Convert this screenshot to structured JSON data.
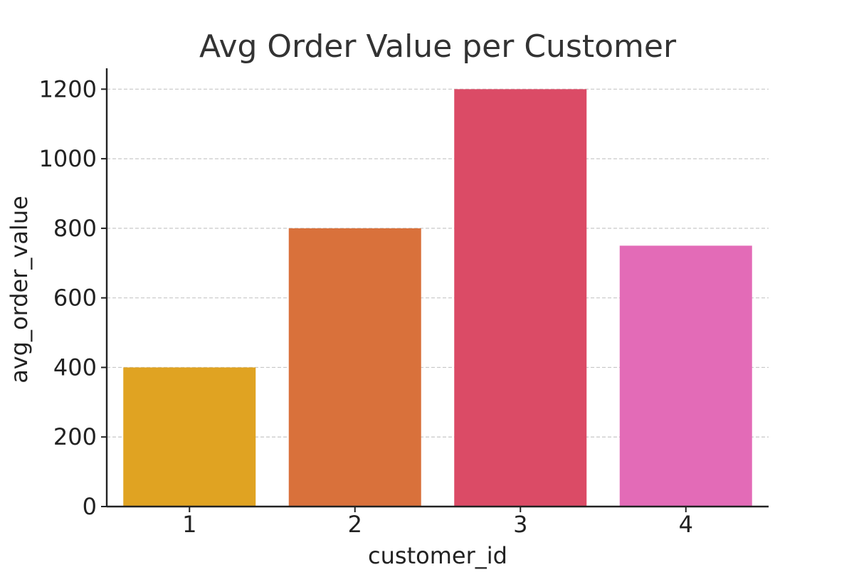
{
  "chart_data": {
    "type": "bar",
    "title": "Avg Order Value per Customer",
    "xlabel": "customer_id",
    "ylabel": "avg_order_value",
    "categories": [
      "1",
      "2",
      "3",
      "4"
    ],
    "values": [
      400,
      800,
      1200,
      750
    ],
    "ylim": [
      0,
      1260
    ],
    "yticks": [
      0,
      200,
      400,
      600,
      800,
      1000,
      1200
    ],
    "grid": "horizontal dashed",
    "colors": [
      "#e0a322",
      "#d9713b",
      "#db4b66",
      "#e36bb7"
    ],
    "axis_color": "#222222",
    "grid_color": "#c8c8c8",
    "text_color": "#222222",
    "title_color": "#333333"
  }
}
